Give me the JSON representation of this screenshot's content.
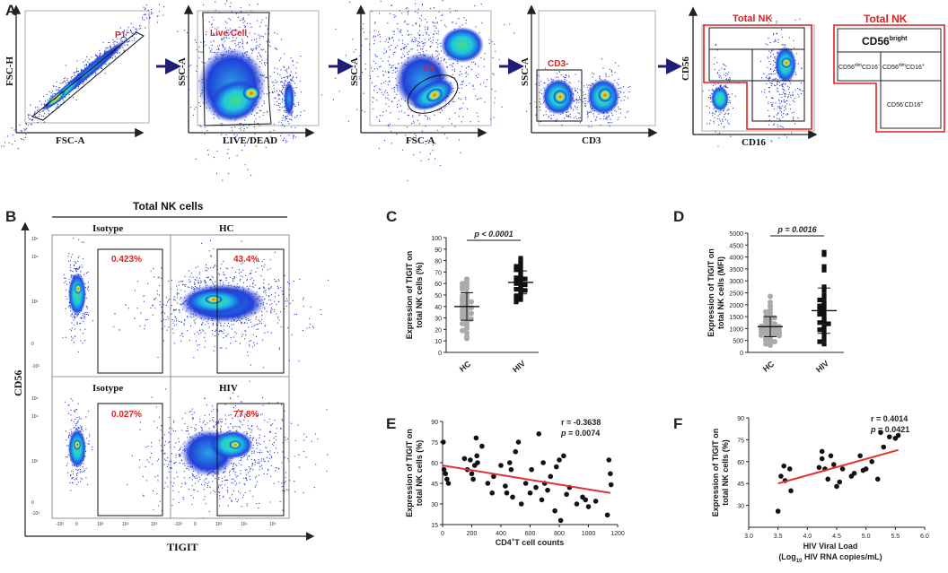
{
  "panels": {
    "A": "A",
    "B": "B",
    "C": "C",
    "D": "D",
    "E": "E",
    "F": "F"
  },
  "colors": {
    "red": "#e02020",
    "navy": "#1f1f7a",
    "density_low": "#2233cc",
    "density_mid": "#22c4e0",
    "density_high": "#ff3b1f",
    "gray_dot": "#aaaaaa",
    "line_red": "#e53030"
  },
  "flow": {
    "plots": [
      {
        "x_label": "FSC-A",
        "y_label": "FSC-H",
        "gate": "P1"
      },
      {
        "x_label": "LIVE/DEAD",
        "y_label": "SSC-A",
        "gate": "Live Cell"
      },
      {
        "x_label": "FSC-A",
        "y_label": "SSC-A",
        "gate": "P2"
      },
      {
        "x_label": "CD3",
        "y_label": "SSC-A",
        "gate": "CD3-"
      },
      {
        "x_label": "CD16",
        "y_label": "CD56",
        "gate": "Total NK"
      }
    ],
    "schema": {
      "title": "Total NK",
      "bright_base": "CD56",
      "bright_sup": "bright",
      "dim_neg_base1": "CD56",
      "dim_neg_sup1": "dim",
      "dim_neg_base2": "CD16",
      "dim_neg_sup2": "-",
      "dim_pos_base1": "CD56",
      "dim_pos_sup1": "dim",
      "dim_pos_base2": "CD16",
      "dim_pos_sup2": "+",
      "neg_pos_base1": "CD56",
      "neg_pos_sup1": "-",
      "neg_pos_base2": "CD16",
      "neg_pos_sup2": "+"
    }
  },
  "panelB": {
    "header": "Total NK cells",
    "y_label": "CD56",
    "x_label": "TIGIT",
    "tick_y": [
      "10⁵",
      "10⁴",
      "10³",
      "0",
      "-10³"
    ],
    "tick_x": [
      "-10³",
      "0",
      "10³",
      "10⁴",
      "10⁵"
    ],
    "plots": [
      {
        "title": "Isotype",
        "pct": "0.423%"
      },
      {
        "title": "HC",
        "pct": "43.4%"
      },
      {
        "title": "Isotype",
        "pct": "0.027%"
      },
      {
        "title": "HIV",
        "pct": "77.8%"
      }
    ]
  },
  "chart_data": [
    {
      "panel": "C",
      "type": "scatter",
      "title": "",
      "ylabel_line1": "Expression of TIGIT on",
      "ylabel_line2": "total NK cells (%)",
      "categories": [
        "HC",
        "HIV"
      ],
      "ylim": [
        0,
        100
      ],
      "yticks": [
        0,
        10,
        20,
        30,
        40,
        50,
        60,
        70,
        80,
        90,
        100
      ],
      "annotation": "p < 0.0001",
      "series": [
        {
          "name": "HC",
          "marker": "circle",
          "mean": 40,
          "sd": 12,
          "values": [
            64,
            62,
            61,
            60,
            58,
            57,
            56,
            55,
            52,
            50,
            49,
            48,
            47,
            46,
            45,
            44,
            43,
            42,
            41,
            40,
            39,
            38,
            37,
            36,
            35,
            34,
            33,
            32,
            31,
            30,
            29,
            28,
            26,
            25,
            23,
            21,
            19,
            17,
            14,
            12
          ]
        },
        {
          "name": "HIV",
          "marker": "square",
          "mean": 61,
          "sd": 10,
          "values": [
            82,
            80,
            78,
            76,
            75,
            73,
            72,
            70,
            68,
            66,
            65,
            64,
            63,
            62,
            61,
            60,
            59,
            58,
            56,
            55,
            54,
            52,
            50,
            49,
            48,
            47,
            46,
            44
          ]
        }
      ]
    },
    {
      "panel": "D",
      "type": "scatter",
      "ylabel_line1": "Expression of TIGIT on",
      "ylabel_line2": "total NK cells (MFI)",
      "categories": [
        "HC",
        "HIV"
      ],
      "ylim": [
        0,
        5000
      ],
      "yticks": [
        0,
        500,
        1000,
        1500,
        2000,
        2500,
        3000,
        3500,
        4000,
        4500,
        5000
      ],
      "annotation": "p = 0.0016",
      "series": [
        {
          "name": "HC",
          "marker": "circle",
          "mean": 1080,
          "sd": 420,
          "values": [
            2350,
            2100,
            1950,
            1800,
            1700,
            1650,
            1550,
            1500,
            1450,
            1400,
            1350,
            1300,
            1250,
            1200,
            1180,
            1150,
            1120,
            1100,
            1080,
            1050,
            1020,
            1000,
            980,
            950,
            920,
            900,
            880,
            850,
            820,
            800,
            780,
            750,
            720,
            700,
            650,
            600,
            550,
            500,
            450,
            400,
            350,
            300
          ]
        },
        {
          "name": "HIV",
          "marker": "square",
          "mean": 1750,
          "sd": 950,
          "values": [
            4200,
            4100,
            3600,
            3450,
            2750,
            2600,
            2400,
            2300,
            2200,
            2100,
            2000,
            1950,
            1900,
            1850,
            1800,
            1700,
            1650,
            1600,
            1500,
            1400,
            1300,
            1250,
            1200,
            1100,
            1000,
            950,
            850,
            700,
            550,
            450,
            350
          ]
        }
      ]
    },
    {
      "panel": "E",
      "type": "scatter",
      "xlabel_base": "CD4",
      "xlabel_sup": "+",
      "xlabel_rest": "T cell counts",
      "ylabel_line1": "Expression of TIGIT on",
      "ylabel_line2": "total NK cells (%)",
      "xlim": [
        0,
        1200
      ],
      "xticks": [
        0,
        200,
        400,
        600,
        800,
        1000,
        1200
      ],
      "ylim": [
        15,
        90
      ],
      "yticks": [
        15,
        30,
        45,
        60,
        75,
        90
      ],
      "r": "r = -0.3638",
      "p": "p = 0.0074",
      "fit": {
        "x1": 0,
        "y1": 58,
        "x2": 1150,
        "y2": 38
      },
      "points": [
        [
          5,
          75
        ],
        [
          10,
          55
        ],
        [
          20,
          52
        ],
        [
          30,
          48
        ],
        [
          40,
          45
        ],
        [
          150,
          63
        ],
        [
          170,
          55
        ],
        [
          190,
          62
        ],
        [
          200,
          52
        ],
        [
          210,
          48
        ],
        [
          220,
          58
        ],
        [
          230,
          78
        ],
        [
          235,
          65
        ],
        [
          240,
          60
        ],
        [
          270,
          72
        ],
        [
          310,
          45
        ],
        [
          340,
          38
        ],
        [
          350,
          50
        ],
        [
          400,
          58
        ],
        [
          430,
          43
        ],
        [
          440,
          38
        ],
        [
          460,
          60
        ],
        [
          470,
          55
        ],
        [
          480,
          35
        ],
        [
          500,
          68
        ],
        [
          520,
          75
        ],
        [
          540,
          30
        ],
        [
          570,
          45
        ],
        [
          600,
          38
        ],
        [
          610,
          55
        ],
        [
          640,
          42
        ],
        [
          660,
          81
        ],
        [
          680,
          33
        ],
        [
          690,
          60
        ],
        [
          700,
          45
        ],
        [
          720,
          40
        ],
        [
          740,
          50
        ],
        [
          770,
          25
        ],
        [
          780,
          57
        ],
        [
          800,
          62
        ],
        [
          810,
          18
        ],
        [
          830,
          65
        ],
        [
          850,
          37
        ],
        [
          870,
          42
        ],
        [
          920,
          30
        ],
        [
          960,
          35
        ],
        [
          980,
          33
        ],
        [
          1000,
          28
        ],
        [
          1050,
          32
        ],
        [
          1130,
          22
        ],
        [
          1140,
          62
        ],
        [
          1150,
          52
        ],
        [
          1155,
          44
        ]
      ]
    },
    {
      "panel": "F",
      "type": "scatter",
      "xlabel_line1": "HIV Viral Load",
      "xlabel2_pre": "(Log",
      "xlabel2_sub": "10",
      "xlabel2_post": " HIV RNA copies/mL)",
      "ylabel_line1": "Expression of TIGIT on",
      "ylabel_line2": "total NK cells (%)",
      "xlim": [
        3.0,
        6.0
      ],
      "xticks": [
        "3.0",
        "3.5",
        "4.0",
        "4.5",
        "5.0",
        "5.5",
        "6.0"
      ],
      "ylim": [
        15,
        90
      ],
      "yticks": [
        30,
        45,
        60,
        75,
        90
      ],
      "r": "r = 0.4014",
      "p": "p = 0.0421",
      "fit": {
        "x1": 3.5,
        "y1": 45,
        "x2": 5.55,
        "y2": 68
      },
      "points": [
        [
          3.5,
          26
        ],
        [
          3.55,
          50
        ],
        [
          3.6,
          57
        ],
        [
          3.62,
          47
        ],
        [
          3.7,
          55
        ],
        [
          3.72,
          40
        ],
        [
          4.2,
          56
        ],
        [
          4.25,
          67
        ],
        [
          4.25,
          62
        ],
        [
          4.3,
          55
        ],
        [
          4.35,
          48
        ],
        [
          4.4,
          64
        ],
        [
          4.45,
          58
        ],
        [
          4.5,
          43
        ],
        [
          4.55,
          46
        ],
        [
          4.6,
          55
        ],
        [
          4.75,
          50
        ],
        [
          4.8,
          52
        ],
        [
          4.9,
          64
        ],
        [
          4.95,
          54
        ],
        [
          5.0,
          55
        ],
        [
          5.1,
          60
        ],
        [
          5.2,
          48
        ],
        [
          5.25,
          80
        ],
        [
          5.3,
          70
        ],
        [
          5.4,
          77
        ],
        [
          5.5,
          76
        ],
        [
          5.55,
          78
        ]
      ]
    }
  ]
}
